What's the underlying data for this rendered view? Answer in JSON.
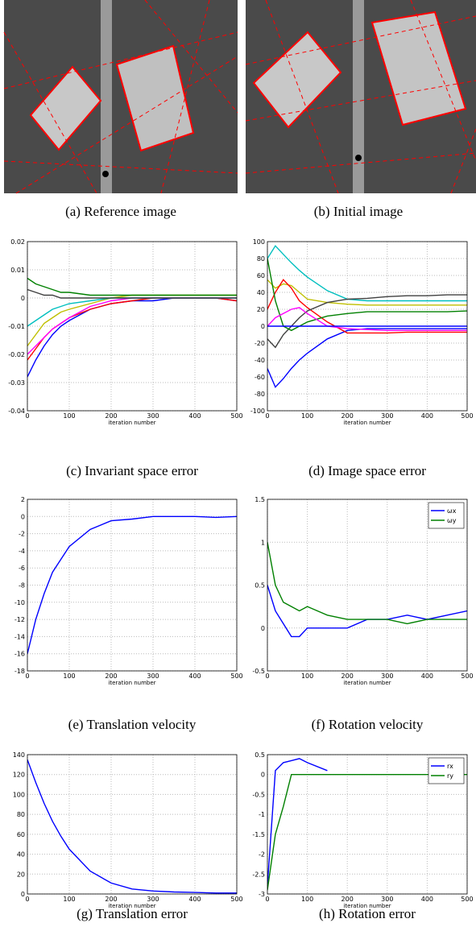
{
  "images": [
    {
      "caption": "(a) Reference image"
    },
    {
      "caption": "(b) Initial image"
    }
  ],
  "chart_data": [
    {
      "type": "line",
      "caption": "(c) Invariant space error",
      "xlabel": "iteration number",
      "x": [
        0,
        20,
        40,
        60,
        80,
        100,
        150,
        200,
        250,
        300,
        350,
        400,
        450,
        500
      ],
      "xlim": [
        0,
        500
      ],
      "xticks": [
        0,
        100,
        200,
        300,
        400,
        500
      ],
      "ylim": [
        -0.04,
        0.02
      ],
      "yticks": [
        -0.04,
        -0.03,
        -0.02,
        -0.01,
        0,
        0.01,
        0.02
      ],
      "grid": true,
      "series": [
        {
          "color": "#0000ff",
          "values": [
            -0.028,
            -0.022,
            -0.017,
            -0.013,
            -0.01,
            -0.008,
            -0.004,
            -0.002,
            -0.001,
            -0.001,
            0,
            0,
            0,
            -0.001
          ]
        },
        {
          "color": "#ff0000",
          "values": [
            -0.022,
            -0.018,
            -0.014,
            -0.011,
            -0.009,
            -0.007,
            -0.004,
            -0.002,
            -0.001,
            0,
            0,
            0,
            0,
            -0.001
          ]
        },
        {
          "color": "#ff00ff",
          "values": [
            -0.02,
            -0.017,
            -0.014,
            -0.011,
            -0.009,
            -0.007,
            -0.003,
            -0.001,
            0,
            0,
            0,
            0,
            0,
            0
          ]
        },
        {
          "color": "#bfbf00",
          "values": [
            -0.017,
            -0.013,
            -0.009,
            -0.007,
            -0.005,
            -0.004,
            -0.002,
            0,
            0.001,
            0.001,
            0.001,
            0.001,
            0.001,
            0.001
          ]
        },
        {
          "color": "#00bfbf",
          "values": [
            -0.01,
            -0.008,
            -0.006,
            -0.004,
            -0.003,
            -0.002,
            -0.001,
            0,
            0,
            0,
            0,
            0,
            0,
            0
          ]
        },
        {
          "color": "#008000",
          "values": [
            0.007,
            0.005,
            0.004,
            0.003,
            0.002,
            0.002,
            0.001,
            0.001,
            0.001,
            0.001,
            0.001,
            0.001,
            0.001,
            0.001
          ]
        },
        {
          "color": "#404040",
          "values": [
            0.003,
            0.002,
            0.001,
            0.001,
            0,
            0,
            0,
            0,
            0,
            0,
            0,
            0,
            0,
            0
          ]
        }
      ]
    },
    {
      "type": "line",
      "caption": "(d) Image space error",
      "xlabel": "iteration number",
      "x": [
        0,
        20,
        40,
        60,
        80,
        100,
        150,
        200,
        250,
        300,
        350,
        400,
        450,
        500
      ],
      "xlim": [
        0,
        500
      ],
      "xticks": [
        0,
        100,
        200,
        300,
        400,
        500
      ],
      "ylim": [
        -100,
        100
      ],
      "yticks": [
        -100,
        -80,
        -60,
        -40,
        -20,
        0,
        20,
        40,
        60,
        80,
        100
      ],
      "grid": true,
      "series": [
        {
          "color": "#0000ff",
          "values": [
            -50,
            -72,
            -62,
            -50,
            -40,
            -32,
            -15,
            -5,
            -3,
            -3,
            -3,
            -3,
            -3,
            -3
          ]
        },
        {
          "color": "#00bfbf",
          "values": [
            80,
            95,
            85,
            75,
            66,
            58,
            42,
            32,
            30,
            30,
            30,
            30,
            30,
            30
          ]
        },
        {
          "color": "#bfbf00",
          "values": [
            55,
            45,
            50,
            48,
            40,
            32,
            28,
            26,
            25,
            25,
            25,
            25,
            25,
            25
          ]
        },
        {
          "color": "#ff0000",
          "values": [
            20,
            40,
            55,
            45,
            30,
            22,
            5,
            -8,
            -8,
            -8,
            -7,
            -7,
            -7,
            -7
          ]
        },
        {
          "color": "#404040",
          "values": [
            -15,
            -25,
            -10,
            0,
            10,
            18,
            28,
            32,
            33,
            35,
            36,
            36,
            37,
            37
          ]
        },
        {
          "color": "#008000",
          "values": [
            80,
            30,
            0,
            -5,
            0,
            5,
            12,
            15,
            17,
            17,
            17,
            17,
            17,
            18
          ]
        },
        {
          "color": "#ff00ff",
          "values": [
            0,
            10,
            15,
            20,
            22,
            15,
            0,
            -3,
            -4,
            -5,
            -5,
            -5,
            -5,
            -5
          ]
        },
        {
          "color": "#0000ff",
          "values": [
            0,
            0,
            0,
            0,
            0,
            0,
            0,
            0,
            0,
            0,
            0,
            0,
            0,
            0
          ]
        }
      ]
    },
    {
      "type": "line",
      "caption": "(e) Translation velocity",
      "xlabel": "iteration number",
      "x": [
        0,
        20,
        40,
        60,
        80,
        100,
        150,
        200,
        250,
        300,
        350,
        400,
        450,
        500
      ],
      "xlim": [
        0,
        500
      ],
      "xticks": [
        0,
        100,
        200,
        300,
        400,
        500
      ],
      "ylim": [
        -18,
        2
      ],
      "yticks": [
        -18,
        -16,
        -14,
        -12,
        -10,
        -8,
        -6,
        -4,
        -2,
        0,
        2
      ],
      "grid": true,
      "series": [
        {
          "color": "#0000ff",
          "values": [
            -16,
            -12,
            -9,
            -6.5,
            -5,
            -3.5,
            -1.5,
            -0.5,
            -0.3,
            0,
            0,
            0,
            -0.1,
            0
          ]
        }
      ]
    },
    {
      "type": "line",
      "caption": "(f) Rotation velocity",
      "xlabel": "iteration number",
      "x": [
        0,
        20,
        40,
        60,
        80,
        100,
        150,
        200,
        250,
        300,
        350,
        400,
        450,
        500
      ],
      "xlim": [
        0,
        500
      ],
      "xticks": [
        0,
        100,
        200,
        300,
        400,
        500
      ],
      "ylim": [
        -0.5,
        1.5
      ],
      "yticks": [
        -0.5,
        0,
        0.5,
        1,
        1.5
      ],
      "grid": true,
      "legend": "upper right",
      "series": [
        {
          "name": "ωx",
          "color": "#0000ff",
          "values": [
            0.5,
            0.2,
            0.05,
            -0.1,
            -0.1,
            0,
            0,
            0,
            0.1,
            0.1,
            0.15,
            0.1,
            0.15,
            0.2
          ]
        },
        {
          "name": "ωy",
          "color": "#008000",
          "values": [
            1.0,
            0.5,
            0.3,
            0.25,
            0.2,
            0.25,
            0.15,
            0.1,
            0.1,
            0.1,
            0.05,
            0.1,
            0.1,
            0.1
          ]
        }
      ]
    },
    {
      "type": "line",
      "caption": "(g) Translation error",
      "xlabel": "iteration number",
      "x": [
        0,
        20,
        40,
        60,
        80,
        100,
        150,
        200,
        250,
        300,
        350,
        400,
        450,
        500
      ],
      "xlim": [
        0,
        500
      ],
      "xticks": [
        0,
        100,
        200,
        300,
        400,
        500
      ],
      "ylim": [
        0,
        140
      ],
      "yticks": [
        0,
        20,
        40,
        60,
        80,
        100,
        120,
        140
      ],
      "grid": true,
      "series": [
        {
          "color": "#0000ff",
          "values": [
            135,
            112,
            91,
            73,
            58,
            45,
            23,
            11,
            5,
            3,
            2,
            1.5,
            1,
            1
          ]
        }
      ]
    },
    {
      "type": "line",
      "caption": "(h) Rotation error",
      "xlabel": "iteration number",
      "x": [
        0,
        20,
        40,
        60,
        80,
        100,
        150,
        200,
        250,
        300,
        350,
        400,
        450,
        500
      ],
      "xlim": [
        0,
        500
      ],
      "xticks": [
        0,
        100,
        200,
        300,
        400,
        500
      ],
      "ylim": [
        -3,
        0.5
      ],
      "yticks": [
        -3,
        -2.5,
        -2,
        -1.5,
        -1,
        -0.5,
        0,
        0.5
      ],
      "grid": true,
      "legend": "upper right",
      "series": [
        {
          "name": "rx",
          "color": "#0000ff",
          "values": [
            -2.8,
            0.1,
            0.3,
            0.35,
            0.4,
            0.3,
            0.1,
            null,
            null,
            null,
            null,
            null,
            null,
            null
          ]
        },
        {
          "name": "ry",
          "color": "#008000",
          "values": [
            -2.9,
            -1.5,
            -0.8,
            0,
            0,
            0,
            0,
            0,
            0,
            0,
            0,
            0,
            0,
            0
          ]
        }
      ]
    }
  ]
}
